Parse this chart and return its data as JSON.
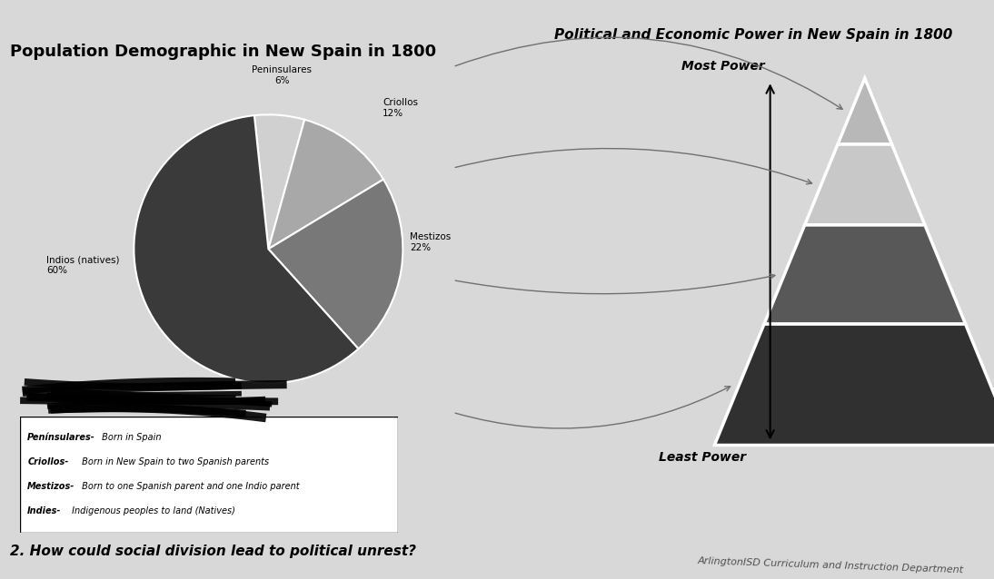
{
  "title_left": "Population Demographic in New Spain in 1800",
  "title_right": "Political and Economic Power in New Spain in 1800",
  "pie_values": [
    6,
    12,
    22,
    60
  ],
  "pie_colors": [
    "#d0d0d0",
    "#a8a8a8",
    "#787878",
    "#3a3a3a"
  ],
  "pie_labels": [
    "Peninsulares\n6%",
    "Criollos\n12%",
    "Mestizos\n22%",
    "Indios (natives)\n60%"
  ],
  "legend_lines": [
    "Penínsulares- Born in Spain",
    "Criollos- Born in New Spain to two Spanish parents",
    "Mestizos- Born to one Spanish parent and one Indio parent",
    "Indies- Indigenous peoples to land (Natives)"
  ],
  "pyramid_colors": [
    "#b8b8b8",
    "#c8c8c8",
    "#585858",
    "#303030"
  ],
  "pyramid_label_most": "Most Power",
  "pyramid_label_least": "Least Power",
  "question": "2. How could social division lead to political unrest?",
  "footer": "ArlingtonISD Curriculum and Instruction Department",
  "bg_color": "#d8d8d8"
}
